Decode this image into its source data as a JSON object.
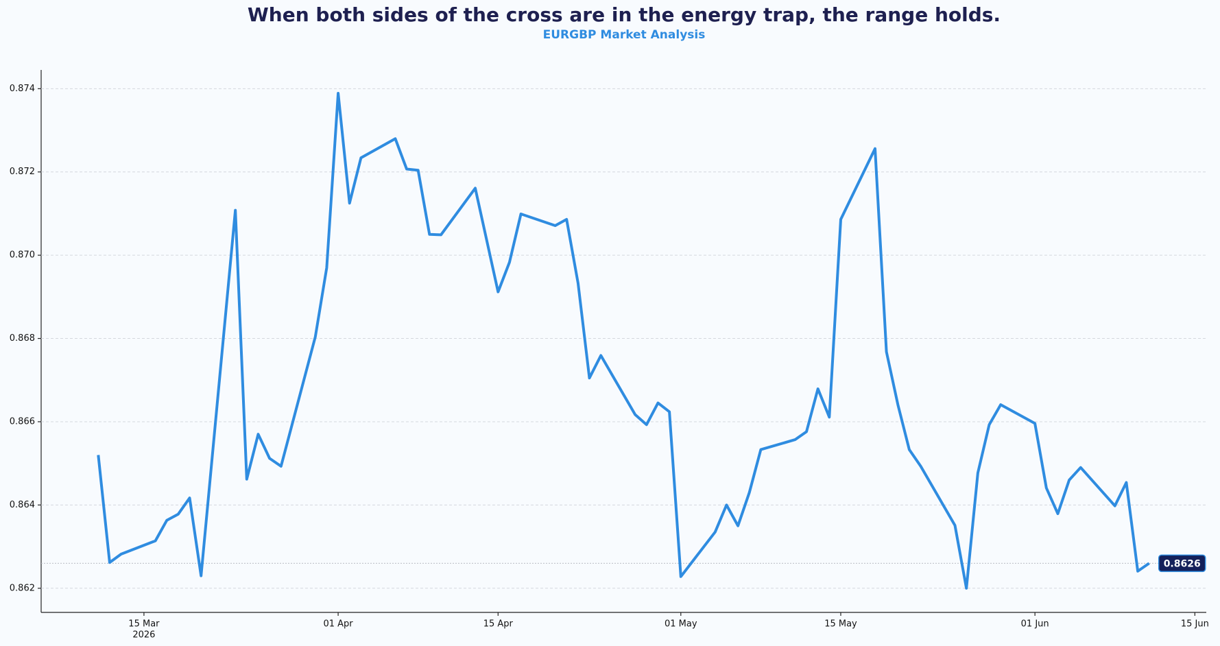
{
  "chart_data": {
    "type": "line",
    "title": "When both sides of the cross are in the energy trap, the range holds.",
    "subtitle": "EURGBP Market Analysis",
    "color": "#2f8ce0",
    "x": [
      "2026-03-11",
      "2026-03-12",
      "2026-03-13",
      "2026-03-16",
      "2026-03-17",
      "2026-03-18",
      "2026-03-19",
      "2026-03-20",
      "2026-03-23",
      "2026-03-24",
      "2026-03-25",
      "2026-03-26",
      "2026-03-27",
      "2026-03-30",
      "2026-03-31",
      "2026-04-01",
      "2026-04-02",
      "2026-04-03",
      "2026-04-06",
      "2026-04-07",
      "2026-04-08",
      "2026-04-09",
      "2026-04-10",
      "2026-04-13",
      "2026-04-15",
      "2026-04-16",
      "2026-04-17",
      "2026-04-20",
      "2026-04-21",
      "2026-04-22",
      "2026-04-23",
      "2026-04-24",
      "2026-04-27",
      "2026-04-28",
      "2026-04-29",
      "2026-04-30",
      "2026-05-01",
      "2026-05-04",
      "2026-05-05",
      "2026-05-06",
      "2026-05-07",
      "2026-05-08",
      "2026-05-11",
      "2026-05-12",
      "2026-05-13",
      "2026-05-14",
      "2026-05-15",
      "2026-05-18",
      "2026-05-19",
      "2026-05-20",
      "2026-05-21",
      "2026-05-22",
      "2026-05-25",
      "2026-05-26",
      "2026-05-27",
      "2026-05-28",
      "2026-05-29",
      "2026-06-01",
      "2026-06-02",
      "2026-06-03",
      "2026-06-04",
      "2026-06-05",
      "2026-06-08",
      "2026-06-09",
      "2026-06-10",
      "2026-06-11"
    ],
    "values": [
      0.8652,
      0.86262,
      0.86282,
      0.86314,
      0.86363,
      0.86378,
      0.86417,
      0.8623,
      0.87108,
      0.86462,
      0.8657,
      0.86512,
      0.86493,
      0.86804,
      0.8697,
      0.87389,
      0.87125,
      0.87234,
      0.8728,
      0.87207,
      0.87204,
      0.8705,
      0.87049,
      0.87161,
      0.86912,
      0.86983,
      0.87099,
      0.87071,
      0.87086,
      0.86933,
      0.86705,
      0.86759,
      0.86617,
      0.86593,
      0.86645,
      0.86624,
      0.86228,
      0.86335,
      0.864,
      0.8635,
      0.8643,
      0.86533,
      0.86557,
      0.86576,
      0.86679,
      0.86611,
      0.87086,
      0.87256,
      0.86768,
      0.86641,
      0.86533,
      0.86493,
      0.86351,
      0.862,
      0.86477,
      0.86593,
      0.86641,
      0.86596,
      0.86441,
      0.86379,
      0.8646,
      0.8649,
      0.86398,
      0.86454,
      0.86241,
      0.8626
    ],
    "last_value": {
      "value": 0.8626,
      "label": "0.8626"
    },
    "xlim": [
      "2026-03-06",
      "2026-06-16"
    ],
    "xticks": [
      {
        "value": "2026-03-15",
        "label": "15 Mar"
      },
      {
        "value": "2026-04-01",
        "label": "01 Apr"
      },
      {
        "value": "2026-04-15",
        "label": "15 Apr"
      },
      {
        "value": "2026-05-01",
        "label": "01 May"
      },
      {
        "value": "2026-05-15",
        "label": "15 May"
      },
      {
        "value": "2026-06-01",
        "label": "01 Jun"
      },
      {
        "value": "2026-06-15",
        "label": "15 Jun"
      }
    ],
    "x_year_label": "2026",
    "ylim": [
      0.86142,
      0.87445
    ],
    "yticks": [
      0.862,
      0.864,
      0.866,
      0.868,
      {
        "value": 0.87,
        "label": "0.870"
      },
      0.872,
      0.874
    ],
    "grid": true
  }
}
